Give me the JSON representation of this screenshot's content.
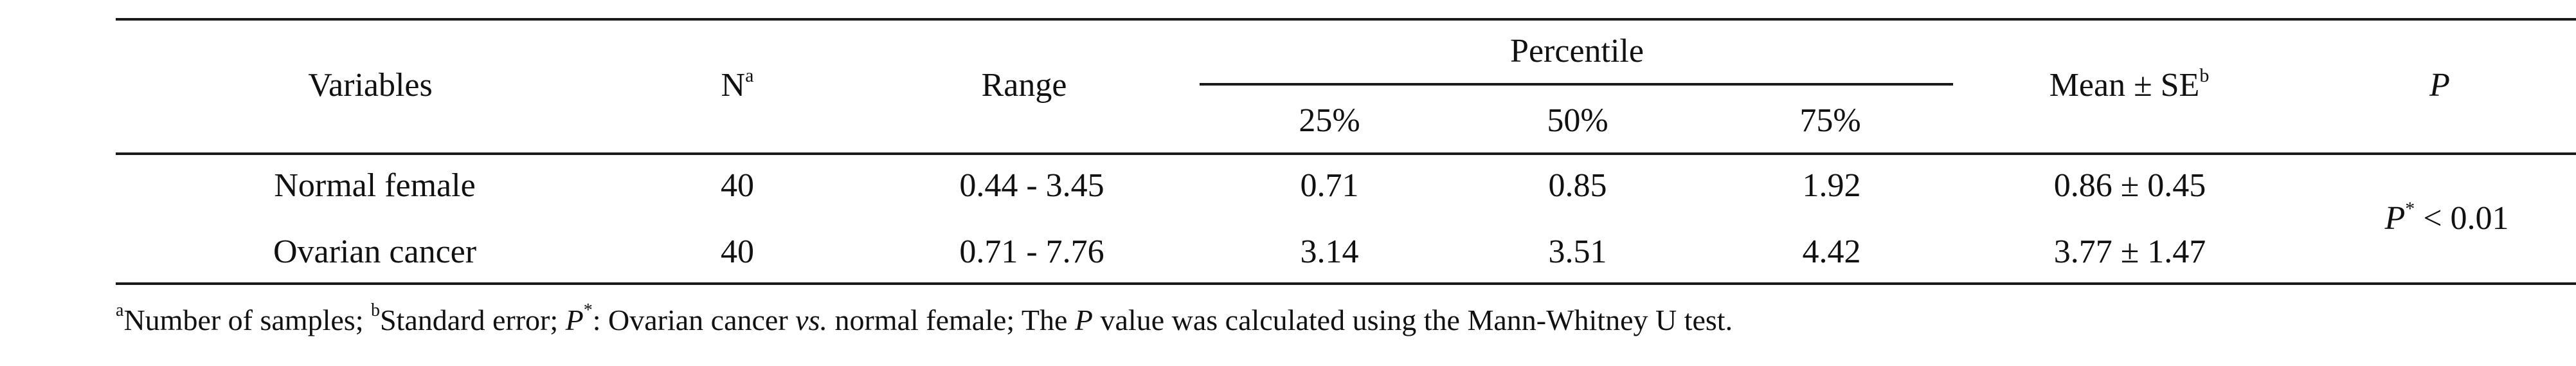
{
  "table": {
    "headers": {
      "variables": "Variables",
      "n": "N",
      "n_sup": "a",
      "range": "Range",
      "percentile": "Percentile",
      "p25": "25%",
      "p50": "50%",
      "p75": "75%",
      "mean_se": "Mean ± SE",
      "mean_se_sup": "b",
      "p": "P"
    },
    "rows": [
      {
        "variable": "Normal female",
        "n": "40",
        "range": "0.44 - 3.45",
        "p25": "0.71",
        "p50": "0.85",
        "p75": "1.92",
        "mean_se": "0.86 ± 0.45"
      },
      {
        "variable": "Ovarian cancer",
        "n": "40",
        "range": "0.71 - 7.76",
        "p25": "3.14",
        "p50": "3.51",
        "p75": "4.42",
        "mean_se": "3.77 ± 1.47"
      }
    ],
    "p_value": {
      "symbol": "P",
      "sup": "*",
      "text": " < 0.01"
    }
  },
  "footnote": {
    "sup_a": "a",
    "text_a": "Number of samples; ",
    "sup_b": "b",
    "text_b": "Standard error; ",
    "p_symbol": "P",
    "p_sup": "*",
    "text_c": ": Ovarian cancer ",
    "vs": "vs.",
    "text_d": " normal female; The ",
    "p_symbol2": "P",
    "text_e": " value was calculated using the Mann-Whitney U test."
  }
}
